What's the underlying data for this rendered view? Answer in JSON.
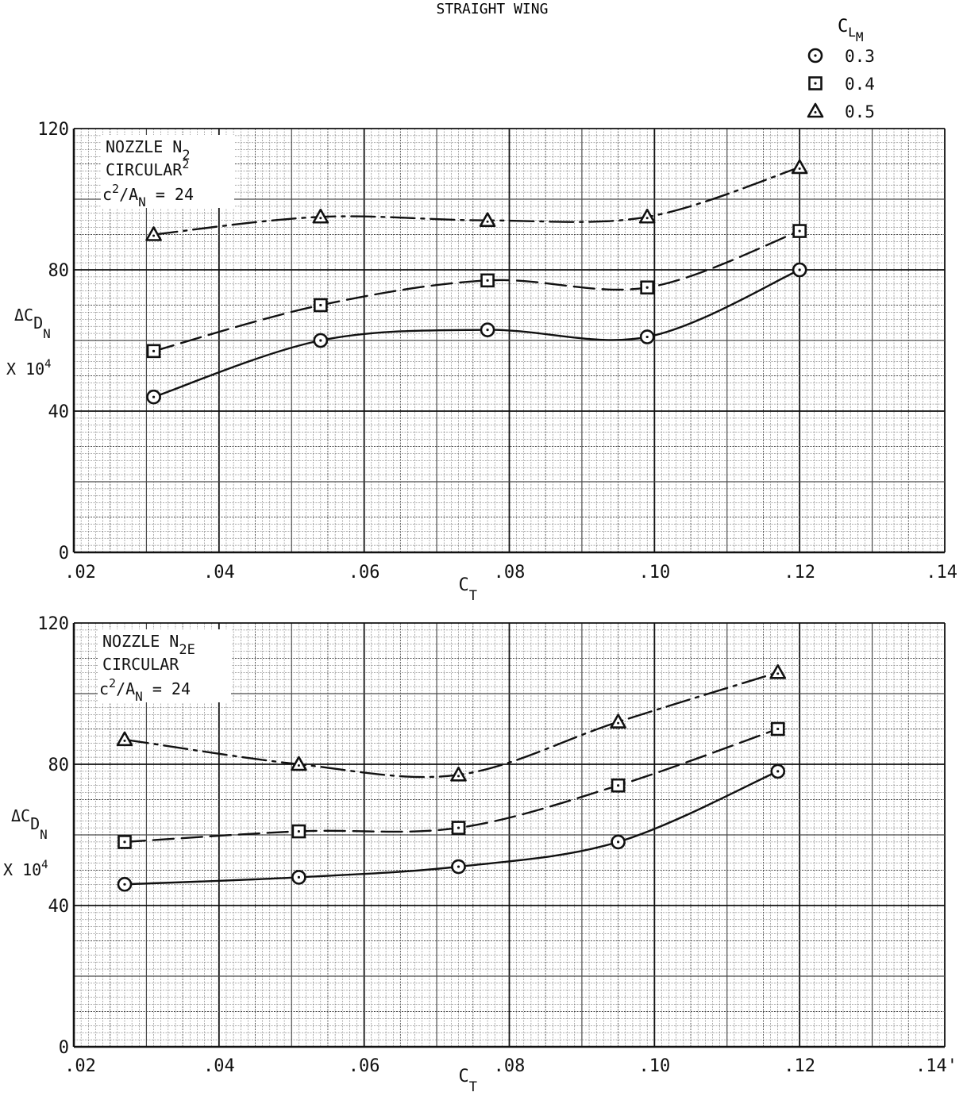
{
  "header": {
    "title": "STRAIGHT WING"
  },
  "legend": {
    "title": "C",
    "title_sub": "L",
    "title_subsub": "M",
    "entries": [
      {
        "symbol": "circle",
        "label": "0.3"
      },
      {
        "symbol": "square",
        "label": "0.4"
      },
      {
        "symbol": "triangle",
        "label": "0.5"
      }
    ]
  },
  "colors": {
    "grid_minor": "#4a4a4a",
    "grid_major": "#111111",
    "ink": "#111111",
    "background": "#ffffff"
  },
  "chart_data": [
    {
      "type": "line",
      "annotation": {
        "line1": "NOZZLE N",
        "line1_sub": "2",
        "line2": "CIRCULAR",
        "line2_sup": "2",
        "line3": "c",
        "line3_sup": "2",
        "line3_rest": "/A",
        "line3_sub": "N",
        "line3_tail": " = 24"
      },
      "xlabel": "C",
      "xlabel_sub": "T",
      "ylabel": "ΔC",
      "ylabel_sub": "D",
      "ylabel_subsub": "N",
      "ylabel_line2": "X 10",
      "ylabel_line2_sup": "4",
      "xlim": [
        0.02,
        0.14
      ],
      "ylim": [
        0,
        120
      ],
      "x_ticks": [
        ".02",
        ".04",
        ".06",
        ".08",
        ".10",
        ".12",
        ".14"
      ],
      "y_ticks": [
        "0",
        "40",
        "80",
        "120"
      ],
      "grid": true,
      "series": [
        {
          "name": "0.3",
          "marker": "circle",
          "line": "solid",
          "x": [
            0.031,
            0.054,
            0.077,
            0.099,
            0.12
          ],
          "y": [
            44,
            60,
            63,
            61,
            80
          ]
        },
        {
          "name": "0.4",
          "marker": "square",
          "line": "dash",
          "x": [
            0.031,
            0.054,
            0.077,
            0.099,
            0.12
          ],
          "y": [
            57,
            70,
            77,
            75,
            91
          ]
        },
        {
          "name": "0.5",
          "marker": "triangle",
          "line": "dashdot",
          "x": [
            0.031,
            0.054,
            0.077,
            0.099,
            0.12
          ],
          "y": [
            90,
            95,
            94,
            95,
            109
          ]
        }
      ]
    },
    {
      "type": "line",
      "annotation": {
        "line1": "NOZZLE N",
        "line1_sub": "2E",
        "line2": "CIRCULAR",
        "line2_sup": "",
        "line3": "c",
        "line3_sup": "2",
        "line3_rest": "/A",
        "line3_sub": "N",
        "line3_tail": " = 24"
      },
      "xlabel": "C",
      "xlabel_sub": "T",
      "ylabel": "ΔC",
      "ylabel_sub": "D",
      "ylabel_subsub": "N",
      "ylabel_line2": "X 10",
      "ylabel_line2_sup": "4",
      "xlim": [
        0.02,
        0.14
      ],
      "ylim": [
        0,
        120
      ],
      "x_ticks": [
        ".02",
        ".04",
        ".06",
        ".08",
        ".10",
        ".12",
        ".14'"
      ],
      "y_ticks": [
        "0",
        "40",
        "80",
        "120"
      ],
      "grid": true,
      "series": [
        {
          "name": "0.3",
          "marker": "circle",
          "line": "solid",
          "x": [
            0.027,
            0.051,
            0.073,
            0.095,
            0.117
          ],
          "y": [
            46,
            48,
            51,
            58,
            78
          ]
        },
        {
          "name": "0.4",
          "marker": "square",
          "line": "dash",
          "x": [
            0.027,
            0.051,
            0.073,
            0.095,
            0.117
          ],
          "y": [
            58,
            61,
            62,
            74,
            90
          ]
        },
        {
          "name": "0.5",
          "marker": "triangle",
          "line": "dashdot",
          "x": [
            0.027,
            0.051,
            0.073,
            0.095,
            0.117
          ],
          "y": [
            87,
            80,
            77,
            92,
            106
          ]
        }
      ]
    }
  ]
}
